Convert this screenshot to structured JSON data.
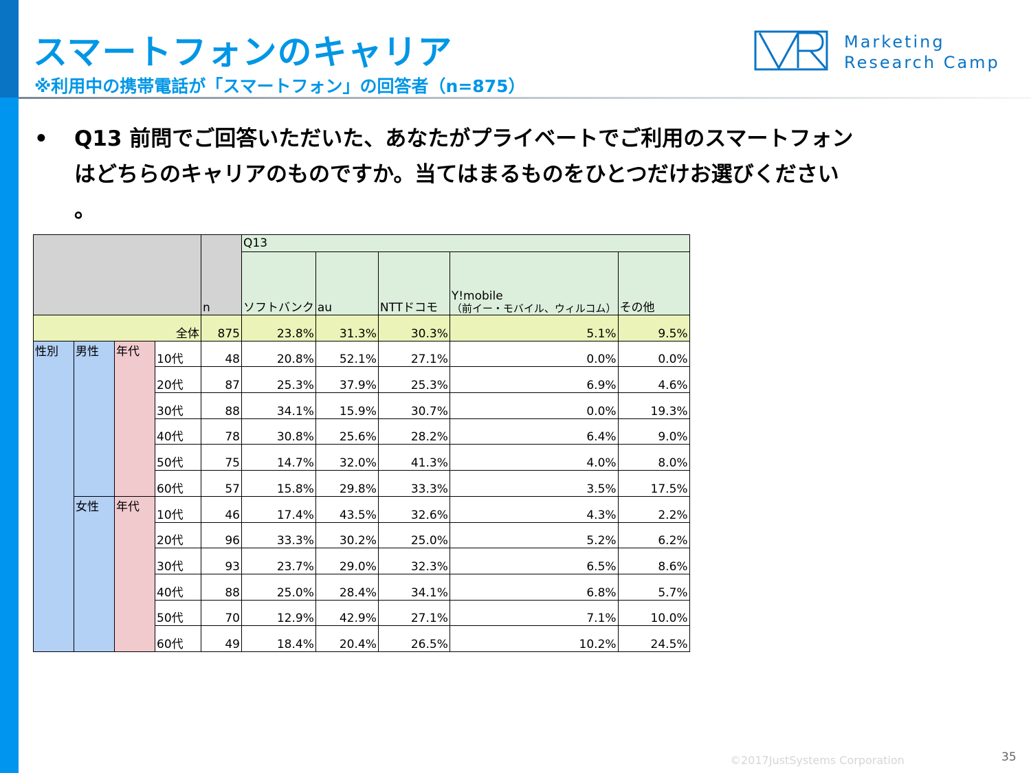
{
  "title": "スマートフォンのキャリア",
  "subtitle": "※利用中の携帯電話が「スマートフォン」の回答者（n=875）",
  "logo": {
    "line1": "Marketing",
    "line2": "Research Camp",
    "mark": "VR-logo-icon",
    "color": "#0a74c4"
  },
  "question": {
    "bullet": "•",
    "lines": [
      "Q13 前問でご回答いただいた、あなたがプライベートでご利用のスマートフォン",
      "はどちらのキャリアのものですか。当てはまるものをひとつだけお選びください",
      "。"
    ]
  },
  "table": {
    "q_label": "Q13",
    "n_label": "n",
    "columns": [
      "ソフトバンク",
      "au",
      "NTTドコモ",
      "Y!mobile\n（前イー・モバイル、ウィルコム）",
      "その他"
    ],
    "total": {
      "label": "全体",
      "n": "875",
      "values": [
        "23.8%",
        "31.3%",
        "30.3%",
        "5.1%",
        "9.5%"
      ]
    },
    "group_label": "性別",
    "age_label": "年代",
    "groups": [
      {
        "label": "男性",
        "rows": [
          {
            "age": "10代",
            "n": "48",
            "values": [
              "20.8%",
              "52.1%",
              "27.1%",
              "0.0%",
              "0.0%"
            ]
          },
          {
            "age": "20代",
            "n": "87",
            "values": [
              "25.3%",
              "37.9%",
              "25.3%",
              "6.9%",
              "4.6%"
            ]
          },
          {
            "age": "30代",
            "n": "88",
            "values": [
              "34.1%",
              "15.9%",
              "30.7%",
              "0.0%",
              "19.3%"
            ]
          },
          {
            "age": "40代",
            "n": "78",
            "values": [
              "30.8%",
              "25.6%",
              "28.2%",
              "6.4%",
              "9.0%"
            ]
          },
          {
            "age": "50代",
            "n": "75",
            "values": [
              "14.7%",
              "32.0%",
              "41.3%",
              "4.0%",
              "8.0%"
            ]
          },
          {
            "age": "60代",
            "n": "57",
            "values": [
              "15.8%",
              "29.8%",
              "33.3%",
              "3.5%",
              "17.5%"
            ]
          }
        ]
      },
      {
        "label": "女性",
        "rows": [
          {
            "age": "10代",
            "n": "46",
            "values": [
              "17.4%",
              "43.5%",
              "32.6%",
              "4.3%",
              "2.2%"
            ]
          },
          {
            "age": "20代",
            "n": "96",
            "values": [
              "33.3%",
              "30.2%",
              "25.0%",
              "5.2%",
              "6.2%"
            ]
          },
          {
            "age": "30代",
            "n": "93",
            "values": [
              "23.7%",
              "29.0%",
              "32.3%",
              "6.5%",
              "8.6%"
            ]
          },
          {
            "age": "40代",
            "n": "88",
            "values": [
              "25.0%",
              "28.4%",
              "34.1%",
              "6.8%",
              "5.7%"
            ]
          },
          {
            "age": "50代",
            "n": "70",
            "values": [
              "12.9%",
              "42.9%",
              "27.1%",
              "7.1%",
              "10.0%"
            ]
          },
          {
            "age": "60代",
            "n": "49",
            "values": [
              "18.4%",
              "20.4%",
              "26.5%",
              "10.2%",
              "24.5%"
            ]
          }
        ]
      }
    ]
  },
  "footer": {
    "copyright": "©2017JustSystems Corporation",
    "page": "35"
  }
}
